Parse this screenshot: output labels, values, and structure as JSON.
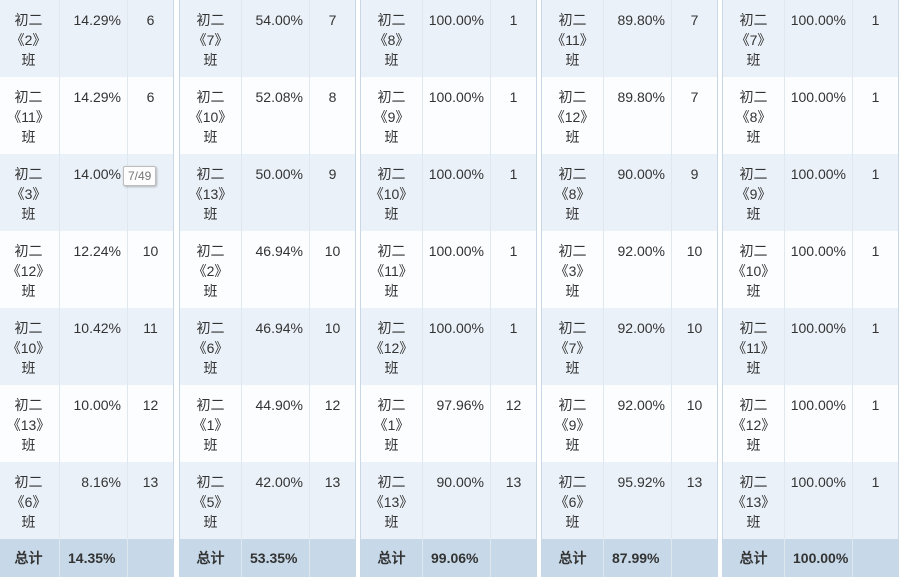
{
  "total_label": "总计",
  "tooltip": "7/49",
  "panels": [
    {
      "rows": [
        {
          "cls": [
            "初二",
            "《2》",
            "班"
          ],
          "pct": "14.29%",
          "rank": "6"
        },
        {
          "cls": [
            "初二",
            "《11》",
            "班"
          ],
          "pct": "14.29%",
          "rank": "6"
        },
        {
          "cls": [
            "初二",
            "《3》",
            "班"
          ],
          "pct": "14.00%",
          "rank": ""
        },
        {
          "cls": [
            "初二",
            "《12》",
            "班"
          ],
          "pct": "12.24%",
          "rank": "10"
        },
        {
          "cls": [
            "初二",
            "《10》",
            "班"
          ],
          "pct": "10.42%",
          "rank": "11"
        },
        {
          "cls": [
            "初二",
            "《13》",
            "班"
          ],
          "pct": "10.00%",
          "rank": "12"
        },
        {
          "cls": [
            "初二",
            "《6》",
            "班"
          ],
          "pct": "8.16%",
          "rank": "13"
        }
      ],
      "total": "14.35%"
    },
    {
      "rows": [
        {
          "cls": [
            "初二",
            "《7》",
            "班"
          ],
          "pct": "54.00%",
          "rank": "7"
        },
        {
          "cls": [
            "初二",
            "《10》",
            "班"
          ],
          "pct": "52.08%",
          "rank": "8"
        },
        {
          "cls": [
            "初二",
            "《13》",
            "班"
          ],
          "pct": "50.00%",
          "rank": "9"
        },
        {
          "cls": [
            "初二",
            "《2》",
            "班"
          ],
          "pct": "46.94%",
          "rank": "10"
        },
        {
          "cls": [
            "初二",
            "《6》",
            "班"
          ],
          "pct": "46.94%",
          "rank": "10"
        },
        {
          "cls": [
            "初二",
            "《1》",
            "班"
          ],
          "pct": "44.90%",
          "rank": "12"
        },
        {
          "cls": [
            "初二",
            "《5》",
            "班"
          ],
          "pct": "42.00%",
          "rank": "13"
        }
      ],
      "total": "53.35%"
    },
    {
      "rows": [
        {
          "cls": [
            "初二",
            "《8》",
            "班"
          ],
          "pct": "100.00%",
          "rank": "1"
        },
        {
          "cls": [
            "初二",
            "《9》",
            "班"
          ],
          "pct": "100.00%",
          "rank": "1"
        },
        {
          "cls": [
            "初二",
            "《10》",
            "班"
          ],
          "pct": "100.00%",
          "rank": "1"
        },
        {
          "cls": [
            "初二",
            "《11》",
            "班"
          ],
          "pct": "100.00%",
          "rank": "1"
        },
        {
          "cls": [
            "初二",
            "《12》",
            "班"
          ],
          "pct": "100.00%",
          "rank": "1"
        },
        {
          "cls": [
            "初二",
            "《1》",
            "班"
          ],
          "pct": "97.96%",
          "rank": "12"
        },
        {
          "cls": [
            "初二",
            "《13》",
            "班"
          ],
          "pct": "90.00%",
          "rank": "13"
        }
      ],
      "total": "99.06%"
    },
    {
      "rows": [
        {
          "cls": [
            "初二",
            "《11》",
            "班"
          ],
          "pct": "89.80%",
          "rank": "7"
        },
        {
          "cls": [
            "初二",
            "《12》",
            "班"
          ],
          "pct": "89.80%",
          "rank": "7"
        },
        {
          "cls": [
            "初二",
            "《8》",
            "班"
          ],
          "pct": "90.00%",
          "rank": "9"
        },
        {
          "cls": [
            "初二",
            "《3》",
            "班"
          ],
          "pct": "92.00%",
          "rank": "10"
        },
        {
          "cls": [
            "初二",
            "《7》",
            "班"
          ],
          "pct": "92.00%",
          "rank": "10"
        },
        {
          "cls": [
            "初二",
            "《9》",
            "班"
          ],
          "pct": "92.00%",
          "rank": "10"
        },
        {
          "cls": [
            "初二",
            "《6》",
            "班"
          ],
          "pct": "95.92%",
          "rank": "13"
        }
      ],
      "total": "87.99%"
    },
    {
      "rows": [
        {
          "cls": [
            "初二",
            "《7》",
            "班"
          ],
          "pct": "100.00%",
          "rank": "1"
        },
        {
          "cls": [
            "初二",
            "《8》",
            "班"
          ],
          "pct": "100.00%",
          "rank": "1"
        },
        {
          "cls": [
            "初二",
            "《9》",
            "班"
          ],
          "pct": "100.00%",
          "rank": "1"
        },
        {
          "cls": [
            "初二",
            "《10》",
            "班"
          ],
          "pct": "100.00%",
          "rank": "1"
        },
        {
          "cls": [
            "初二",
            "《11》",
            "班"
          ],
          "pct": "100.00%",
          "rank": "1"
        },
        {
          "cls": [
            "初二",
            "《12》",
            "班"
          ],
          "pct": "100.00%",
          "rank": "1"
        },
        {
          "cls": [
            "初二",
            "《13》",
            "班"
          ],
          "pct": "100.00%",
          "rank": "1"
        }
      ],
      "total": "100.00%"
    }
  ]
}
